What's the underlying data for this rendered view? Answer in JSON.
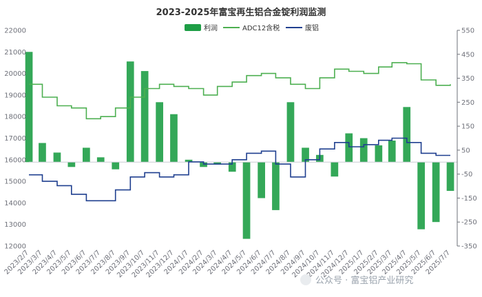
{
  "watermark": "公众号 · 富宝铝产业研究",
  "chart_data": {
    "type": "line",
    "title": "2023-2025年富宝再生铝合金锭利润监测",
    "legend_position": "top",
    "grid": false,
    "colors": {
      "profit": "#1e9e46",
      "adc12": "#4caf50",
      "scrap": "#1f3f8f"
    },
    "legend": [
      {
        "key": "profit",
        "label": "利润",
        "marker": "rect"
      },
      {
        "key": "adc12",
        "label": "ADC12含税",
        "marker": "line"
      },
      {
        "key": "scrap",
        "label": "废铝",
        "marker": "line"
      }
    ],
    "x_labels": [
      "2023/2/7",
      "2023/3/7",
      "2023/4/7",
      "2023/5/7",
      "2023/6/7",
      "2023/7/7",
      "2023/8/7",
      "2023/9/7",
      "2023/10/7",
      "2023/11/7",
      "2023/12/7",
      "2024/1/7",
      "2024/2/7",
      "2024/3/7",
      "2024/4/7",
      "2024/5/7",
      "2024/6/7",
      "2024/7/7",
      "2024/8/7",
      "2024/9/7",
      "2024/10/7",
      "2024/11/7",
      "2024/12/7",
      "2025/1/7",
      "2025/2/7",
      "2025/3/7",
      "2025/4/7",
      "2025/5/7",
      "2025/6/7",
      "2025/7/7"
    ],
    "y_left": {
      "min": 12000,
      "max": 22000,
      "ticks": [
        22000,
        21000,
        20000,
        19000,
        18000,
        17000,
        16000,
        15000,
        14000,
        13000,
        12000
      ]
    },
    "y_right": {
      "min": -350,
      "max": 550,
      "ticks": [
        550,
        450,
        350,
        250,
        150,
        50,
        -50,
        -150,
        -250,
        -350
      ]
    },
    "series": [
      {
        "key": "adc12",
        "name": "ADC12含税",
        "axis": "left",
        "dates": [
          "2023/2/7",
          "2023/3/7",
          "2023/4/7",
          "2023/5/7",
          "2023/6/7",
          "2023/7/7",
          "2023/8/7",
          "2023/9/7",
          "2023/10/7",
          "2023/11/7",
          "2023/12/7",
          "2024/1/7",
          "2024/2/7",
          "2024/3/7",
          "2024/4/7",
          "2024/5/7",
          "2024/6/7",
          "2024/7/7",
          "2024/8/7",
          "2024/9/7",
          "2024/10/7",
          "2024/11/7",
          "2024/12/7",
          "2025/1/7",
          "2025/2/7",
          "2025/3/7",
          "2025/4/7",
          "2025/5/7",
          "2025/6/7",
          "2025/7/7"
        ],
        "values": [
          19500,
          18900,
          18500,
          18400,
          17900,
          18000,
          18400,
          18900,
          19300,
          19500,
          19400,
          19300,
          19000,
          19400,
          19600,
          19900,
          20000,
          19800,
          19500,
          19300,
          19800,
          20200,
          20100,
          20000,
          20300,
          20500,
          20450,
          19700,
          19450,
          19500
        ]
      },
      {
        "key": "scrap",
        "name": "废铝",
        "axis": "left",
        "dates": [
          "2023/2/7",
          "2023/3/7",
          "2023/4/7",
          "2023/5/7",
          "2023/6/7",
          "2023/7/7",
          "2023/8/7",
          "2023/9/7",
          "2023/10/7",
          "2023/11/7",
          "2023/12/7",
          "2024/1/7",
          "2024/2/7",
          "2024/3/7",
          "2024/4/7",
          "2024/5/7",
          "2024/6/7",
          "2024/7/7",
          "2024/8/7",
          "2024/9/7",
          "2024/10/7",
          "2024/11/7",
          "2024/12/7",
          "2025/1/7",
          "2025/2/7",
          "2025/3/7",
          "2025/4/7",
          "2025/5/7",
          "2025/6/7",
          "2025/7/7"
        ],
        "values": [
          15300,
          15000,
          14800,
          14400,
          14100,
          14100,
          14600,
          15200,
          15400,
          15200,
          15300,
          15900,
          15800,
          15800,
          16000,
          16300,
          16400,
          15800,
          15200,
          16000,
          16500,
          16800,
          16600,
          16700,
          16900,
          17000,
          16800,
          16300,
          16200,
          16200
        ]
      },
      {
        "key": "profit",
        "name": "利润",
        "axis": "right",
        "dates": [
          "2023/2/7",
          "2023/3/7",
          "2023/4/7",
          "2023/5/7",
          "2023/6/7",
          "2023/7/7",
          "2023/8/7",
          "2023/9/7",
          "2023/10/7",
          "2023/11/7",
          "2023/12/7",
          "2024/1/7",
          "2024/2/7",
          "2024/3/7",
          "2024/4/7",
          "2024/5/7",
          "2024/6/7",
          "2024/7/7",
          "2024/8/7",
          "2024/9/7",
          "2024/10/7",
          "2024/11/7",
          "2024/12/7",
          "2025/1/7",
          "2025/2/7",
          "2025/3/7",
          "2025/4/7",
          "2025/5/7",
          "2025/6/7",
          "2025/7/7"
        ],
        "values": [
          460,
          80,
          40,
          -20,
          60,
          20,
          -30,
          420,
          380,
          250,
          200,
          10,
          -20,
          -10,
          -40,
          -320,
          -150,
          -200,
          250,
          60,
          30,
          -60,
          120,
          100,
          70,
          90,
          230,
          -280,
          -250,
          -120
        ]
      }
    ]
  }
}
